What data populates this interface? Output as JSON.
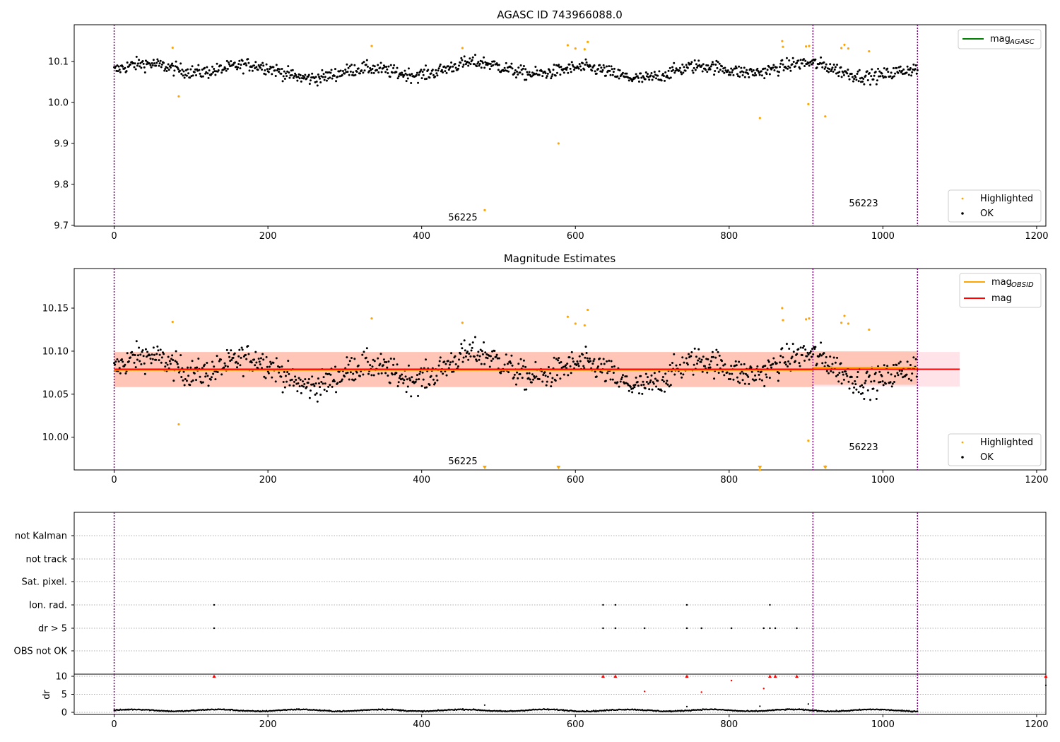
{
  "chart_data": [
    {
      "type": "scatter",
      "title": "AGASC ID 743966088.0",
      "xlabel": "",
      "ylabel": "",
      "xlim": [
        -52,
        1212
      ],
      "ylim": [
        9.698,
        10.19
      ],
      "x_ticks": [
        0,
        200,
        400,
        600,
        800,
        1000,
        1200
      ],
      "y_ticks": [
        9.7,
        9.8,
        9.9,
        10.0,
        10.1
      ],
      "y_tick_labels": [
        "9.7",
        "9.8",
        "9.9",
        "10.0",
        "10.1"
      ],
      "vlines": [
        0,
        909,
        1045
      ],
      "obsid_labels": [
        {
          "text": "56225",
          "x": 455,
          "y": 9.718
        },
        {
          "text": "56223",
          "x": 978,
          "y": 9.753
        }
      ],
      "legend_upper": [
        {
          "label": "mag",
          "sub": "AGASC",
          "color": "#008000",
          "marker": "line"
        }
      ],
      "legend_lower": [
        {
          "label": "Highlighted",
          "color": "#ffa500",
          "marker": "dot-small"
        },
        {
          "label": "OK",
          "color": "#000000",
          "marker": "dot"
        }
      ],
      "series": [
        {
          "name": "OK",
          "color": "#000000",
          "x_range": [
            0,
            1045
          ],
          "y_center": 10.078,
          "y_spread": 0.048,
          "count": 1040
        },
        {
          "name": "Highlighted",
          "color": "#ffa500",
          "x": [
            76,
            84,
            335,
            453,
            482,
            578,
            590,
            600,
            612,
            616,
            840,
            869,
            870,
            900,
            903,
            904,
            925,
            946,
            950,
            955,
            982
          ],
          "y": [
            10.134,
            10.015,
            10.138,
            10.133,
            9.737,
            9.9,
            10.14,
            10.132,
            10.13,
            10.148,
            9.962,
            10.15,
            10.136,
            10.137,
            9.996,
            10.138,
            9.966,
            10.133,
            10.141,
            10.132,
            10.125
          ]
        }
      ]
    },
    {
      "type": "scatter",
      "title": "Magnitude Estimates",
      "xlabel": "",
      "ylabel": "",
      "xlim": [
        -52,
        1212
      ],
      "ylim": [
        9.962,
        10.196
      ],
      "x_ticks": [
        0,
        200,
        400,
        600,
        800,
        1000,
        1200
      ],
      "y_ticks": [
        10.0,
        10.05,
        10.1,
        10.15
      ],
      "y_tick_labels": [
        "10.00",
        "10.05",
        "10.10",
        "10.15"
      ],
      "vlines": [
        0,
        909,
        1045
      ],
      "obsid_labels": [
        {
          "text": "56225",
          "x": 455,
          "y": 9.973
        },
        {
          "text": "56223",
          "x": 978,
          "y": 9.99
        }
      ],
      "mag_line": {
        "value": 10.079,
        "x_range": [
          0,
          1100
        ],
        "band": [
          10.059,
          10.099
        ],
        "color": "#ff0000",
        "band_color": "#ffc0cb"
      },
      "obsid_lines": [
        {
          "x_range": [
            0,
            909
          ],
          "value": 10.078,
          "band": [
            10.058,
            10.099
          ],
          "color": "#ffa500"
        },
        {
          "x_range": [
            909,
            1045
          ],
          "value": 10.081,
          "band": [
            10.061,
            10.1
          ],
          "color": "#ffa500"
        }
      ],
      "clipped_low_markers": [
        {
          "x": 482
        },
        {
          "x": 578
        },
        {
          "x": 840
        },
        {
          "x": 925
        }
      ],
      "legend_upper": [
        {
          "label": "mag",
          "sub": "OBSID",
          "color": "#ffa500",
          "marker": "line"
        },
        {
          "label": "mag",
          "sub": "",
          "color": "#ff0000",
          "marker": "line"
        }
      ],
      "legend_lower": [
        {
          "label": "Highlighted",
          "color": "#ffa500",
          "marker": "dot-small"
        },
        {
          "label": "OK",
          "color": "#000000",
          "marker": "dot"
        }
      ]
    },
    {
      "type": "scatter",
      "title": "",
      "xlabel": "",
      "ylabel": "",
      "xlim": [
        -52,
        1212
      ],
      "categories": [
        "not Kalman",
        "not track",
        "Sat. pixel.",
        "Ion. rad.",
        "dr > 5",
        "OBS not OK"
      ],
      "vlines": [
        0,
        909,
        1045
      ],
      "flags": [
        {
          "category": "Ion. rad.",
          "x": [
            130,
            636,
            652,
            745,
            853
          ]
        },
        {
          "category": "dr > 5",
          "x": [
            130,
            636,
            652,
            690,
            745,
            764,
            803,
            845,
            853,
            860,
            888
          ]
        }
      ]
    },
    {
      "type": "scatter",
      "title": "",
      "xlabel": "",
      "ylabel": "dr",
      "xlim": [
        -52,
        1212
      ],
      "ylim": [
        -0.3,
        10.3
      ],
      "y_ticks": [
        0,
        5,
        10
      ],
      "y_tick_labels": [
        "0",
        "5",
        "10"
      ],
      "vlines": [
        0,
        909,
        1045
      ],
      "clipped_high_markers": {
        "x": [
          130,
          636,
          652,
          745,
          853,
          860,
          888,
          1212
        ],
        "color": "#ff0000"
      },
      "red_points": {
        "x": [
          690,
          764,
          803,
          845
        ],
        "y": [
          5.8,
          5.6,
          8.8,
          6.6
        ],
        "color": "#ff0000"
      },
      "spikes": {
        "x": [
          482,
          745,
          840,
          903,
          1212
        ],
        "y": [
          2.0,
          1.6,
          1.7,
          2.3,
          7.5
        ]
      },
      "series": [
        {
          "name": "",
          "color": "#000000",
          "x_range": [
            0,
            1045
          ],
          "y_center": 0.55,
          "y_spread": 0.45
        }
      ]
    }
  ]
}
